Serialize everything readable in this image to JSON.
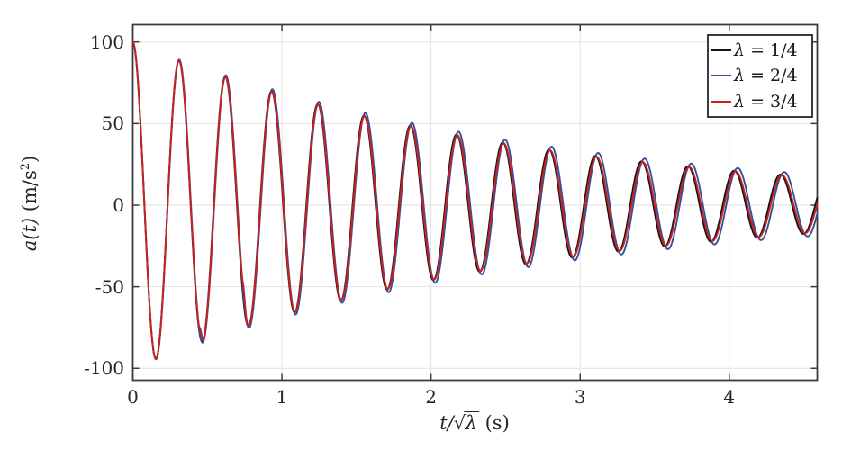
{
  "chart_data": {
    "type": "line",
    "title": "",
    "xlabel": "t/√λ (s)",
    "xlabel_parts": {
      "numerator": "t/",
      "radical": "√",
      "radicand": "λ",
      "unit": " (s)"
    },
    "ylabel": "a(t) (m/s²)",
    "ylabel_parts": {
      "func": "a(t)",
      "unit_open": " (m/s",
      "exponent": "2",
      "unit_close": ")"
    },
    "xlim": [
      0,
      4.59
    ],
    "ylim": [
      -107.3,
      110.6
    ],
    "xticks": [
      0,
      1,
      2,
      3,
      4
    ],
    "yticks": [
      -100,
      -50,
      0,
      50,
      100
    ],
    "grid": true,
    "grid_color": "#e2e2e2",
    "axis_color": "#3c3c3c",
    "tick_label_color": "#262626",
    "background": "#ffffff",
    "model": "a(t) = A*exp(-gamma*t)*cos(omega*t), plotted versus t/sqrt(lambda)",
    "series": [
      {
        "name": "λ = 1/4",
        "color": "#141414",
        "A": 100,
        "gamma": 0.385,
        "omega": 20.25
      },
      {
        "name": "λ = 2/4",
        "color": "#35509b",
        "A": 100,
        "gamma": 0.365,
        "omega": 20.13
      },
      {
        "name": "λ = 3/4",
        "color": "#c8211f",
        "A": 100,
        "gamma": 0.39,
        "omega": 20.2,
        "glitches": [
          {
            "t0": 0.455,
            "width": 0.01,
            "amp": 5
          },
          {
            "t0": 0.745,
            "width": 0.012,
            "amp": 7
          }
        ]
      }
    ],
    "legend": {
      "position": "top-right",
      "entries": [
        "λ = 1/4",
        "λ = 2/4",
        "λ = 3/4"
      ]
    }
  }
}
